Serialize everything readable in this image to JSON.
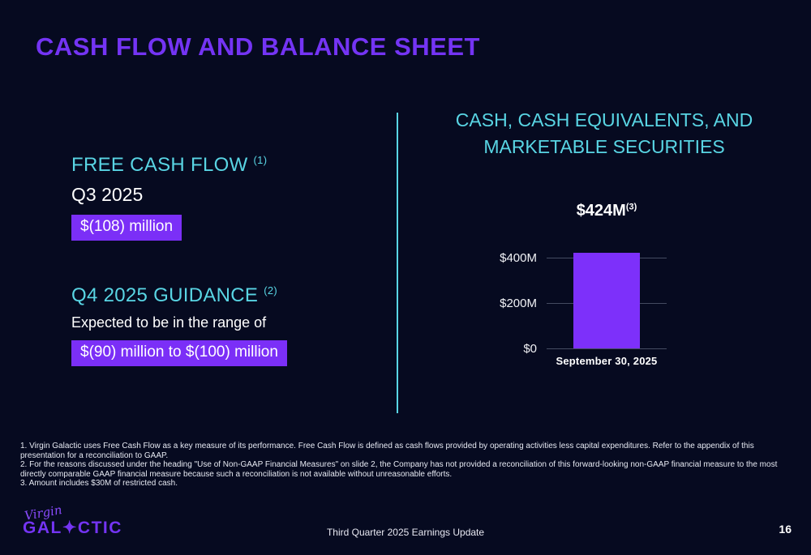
{
  "slide": {
    "title": "CASH FLOW AND BALANCE SHEET",
    "footer_center": "Third Quarter 2025 Earnings Update",
    "page_number": "16"
  },
  "left": {
    "fcf": {
      "heading": "FREE CASH FLOW",
      "footnote_ref": "(1)",
      "period": "Q3 2025",
      "value": "$(108) million"
    },
    "guidance": {
      "heading": "Q4 2025 GUIDANCE",
      "footnote_ref": "(2)",
      "subtext": "Expected to be in the range of",
      "value": "$(90) million to $(100) million"
    }
  },
  "right": {
    "heading_line1": "CASH, CASH EQUIVALENTS, AND",
    "heading_line2": "MARKETABLE SECURITIES"
  },
  "chart_data": {
    "type": "bar",
    "title": "CASH, CASH EQUIVALENTS, AND MARKETABLE SECURITIES",
    "categories": [
      "September 30, 2025"
    ],
    "values": [
      424
    ],
    "bar_label": "$424M",
    "bar_label_footnote": "(3)",
    "xlabel": "",
    "ylabel": "",
    "ylim": [
      0,
      520
    ],
    "yticks": [
      {
        "label": "$0",
        "value": 0
      },
      {
        "label": "$200M",
        "value": 200
      },
      {
        "label": "$400M",
        "value": 400
      }
    ],
    "grid": true,
    "legend": false,
    "bar_color": "#7D30FA"
  },
  "footnotes": [
    "1. Virgin Galactic uses Free Cash Flow as a key measure of its performance. Free Cash Flow is defined as cash flows provided by operating activities less capital expenditures. Refer to the appendix of this presentation for a reconciliation to GAAP.",
    "2. For the reasons discussed under the heading \"Use of Non-GAAP Financial Measures\" on slide 2, the Company has not provided a reconciliation of this forward-looking non-GAAP financial measure to the most directly comparable GAAP financial measure because such a  reconciliation is not available without unreasonable efforts.",
    "3. Amount includes $30M of restricted cash."
  ],
  "logo": {
    "script": "Virgin",
    "wordmark": "GAL✦CTIC"
  },
  "colors": {
    "background": "#060a20",
    "title_purple": "#7434F4",
    "accent_cyan": "#59D5E4",
    "highlight_purple": "#7B2FF7",
    "bar_purple": "#7D30FA"
  }
}
